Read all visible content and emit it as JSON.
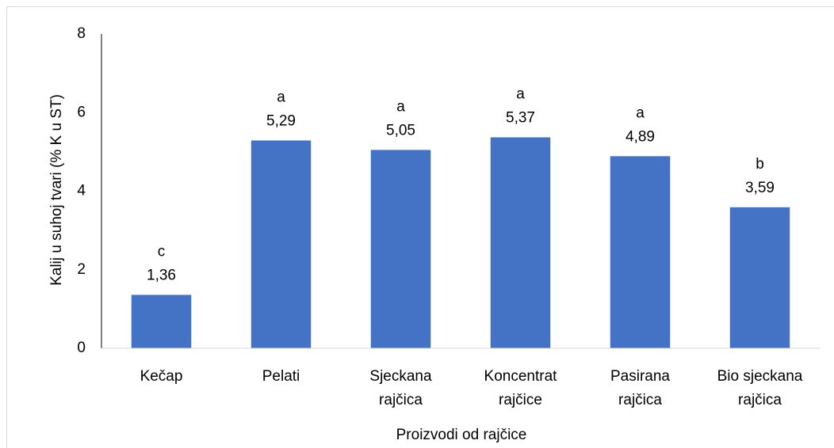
{
  "chart_data": {
    "type": "bar",
    "categories": [
      "Kečap",
      "Pelati",
      "Sjeckana rajčica",
      "Koncentrat rajčice",
      "Pasirana rajčica",
      "Bio sjeckana rajčica"
    ],
    "values": [
      1.36,
      5.29,
      5.05,
      5.37,
      4.89,
      3.59
    ],
    "value_labels": [
      "1,36",
      "5,29",
      "5,05",
      "5,37",
      "4,89",
      "3,59"
    ],
    "annotations": [
      "c",
      "a",
      "a",
      "a",
      "a",
      "b"
    ],
    "color": "#4472c4",
    "ylim": [
      0,
      8
    ],
    "yticks": [
      0,
      2,
      4,
      6,
      8
    ],
    "grid": false,
    "x_label": "Proizvodi od rajčice",
    "y_label": "Kalij u suhoj tvari (% K u ST)"
  }
}
